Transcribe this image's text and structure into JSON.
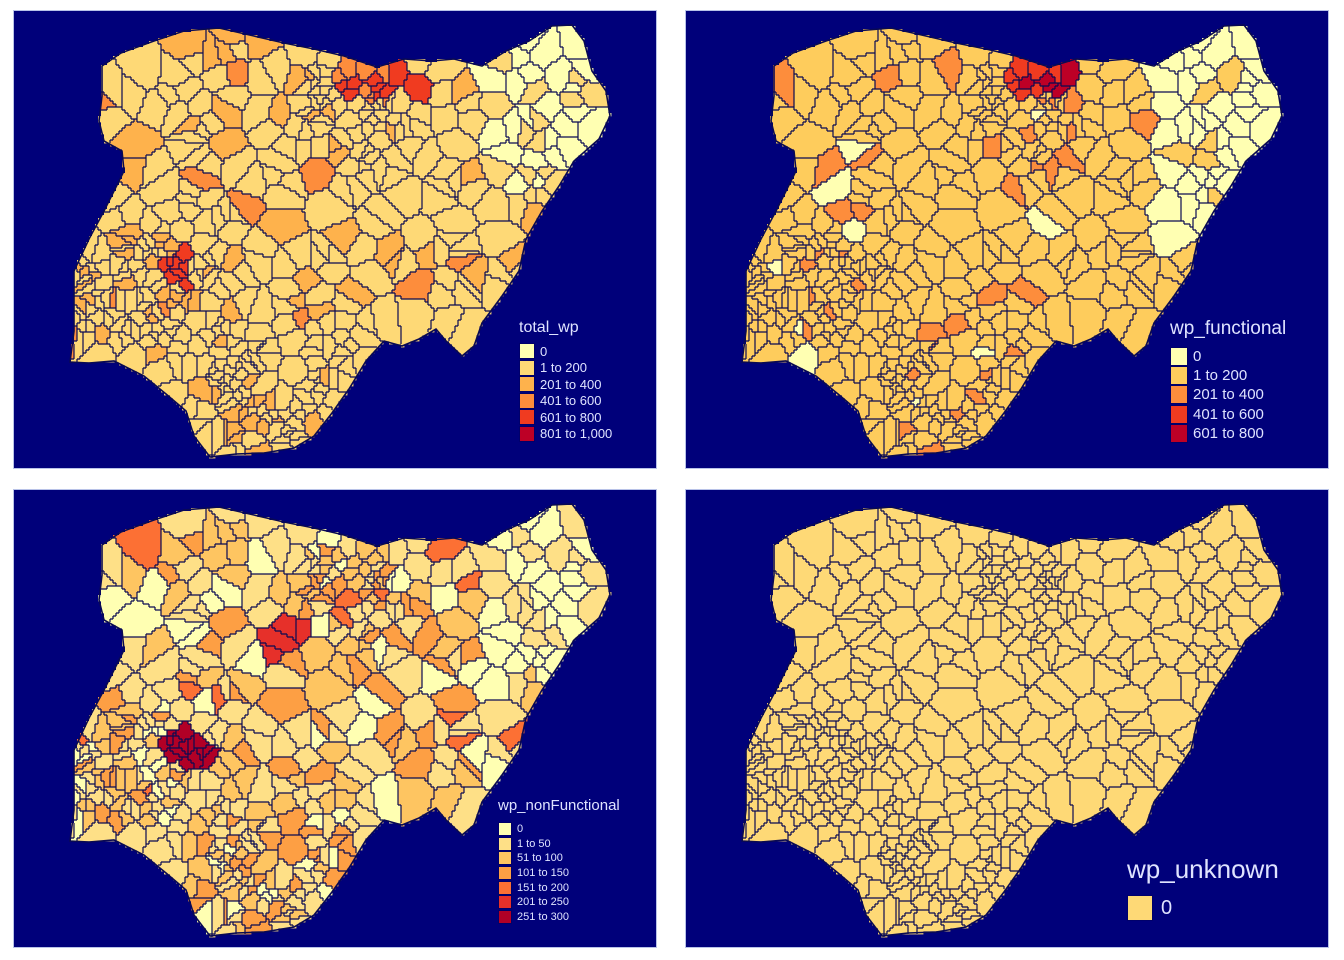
{
  "colors": {
    "background": "#00007a",
    "boundary": "#0a0a52",
    "legend_text": "#dfe3ff"
  },
  "panels": [
    {
      "variable": "total_wp",
      "legend_title": "total_wp",
      "classes": [
        {
          "label": "0",
          "color": "#ffffb2"
        },
        {
          "label": "1 to 200",
          "color": "#fed976"
        },
        {
          "label": "201 to 400",
          "color": "#feb24c"
        },
        {
          "label": "401 to 600",
          "color": "#fd8d3c"
        },
        {
          "label": "601 to 800",
          "color": "#f03b20"
        },
        {
          "label": "801 to 1,000",
          "color": "#bd0026"
        }
      ]
    },
    {
      "variable": "wp_functional",
      "legend_title": "wp_functional",
      "classes": [
        {
          "label": "0",
          "color": "#ffffb2"
        },
        {
          "label": "1 to 200",
          "color": "#fecc5c"
        },
        {
          "label": "201 to 400",
          "color": "#fd8d3c"
        },
        {
          "label": "401 to 600",
          "color": "#f03b20"
        },
        {
          "label": "601 to 800",
          "color": "#bd0026"
        }
      ]
    },
    {
      "variable": "wp_nonFunctional",
      "legend_title": "wp_nonFunctional",
      "classes": [
        {
          "label": "0",
          "color": "#ffffb2"
        },
        {
          "label": "1 to 50",
          "color": "#fee087"
        },
        {
          "label": "51 to 100",
          "color": "#fec561"
        },
        {
          "label": "101 to 150",
          "color": "#fd9f44"
        },
        {
          "label": "151 to 200",
          "color": "#fc7034"
        },
        {
          "label": "201 to 250",
          "color": "#e6302a"
        },
        {
          "label": "251 to 300",
          "color": "#b10026"
        }
      ]
    },
    {
      "variable": "wp_unknown",
      "legend_title": "wp_unknown",
      "classes": [
        {
          "label": "0",
          "color": "#fed976"
        }
      ]
    }
  ]
}
